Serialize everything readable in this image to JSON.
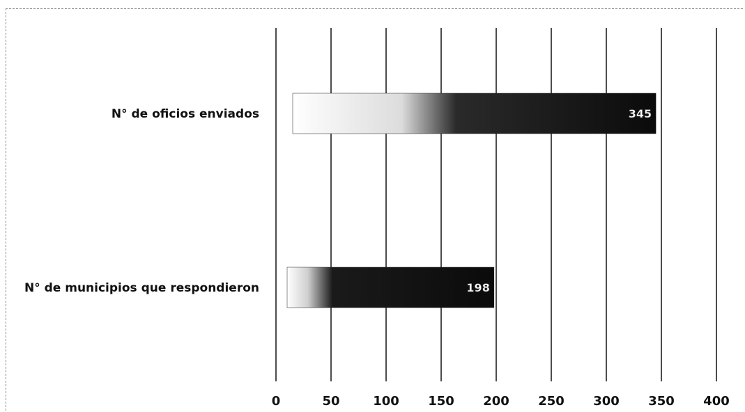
{
  "chart_data": {
    "type": "bar",
    "orientation": "horizontal",
    "categories": [
      "N° de oficios enviados",
      "N° de municipios que respondieron"
    ],
    "values": [
      345,
      198
    ],
    "data_labels": [
      "345",
      "198"
    ],
    "xlim": [
      0,
      400
    ],
    "x_ticks": [
      "0",
      "50",
      "100",
      "150",
      "200",
      "250",
      "300",
      "350",
      "400"
    ],
    "grid": "vertical",
    "legend": "none",
    "colors": {
      "bar": "#0b0b0b",
      "fade": "#ffffff",
      "grid": "#000000"
    }
  }
}
